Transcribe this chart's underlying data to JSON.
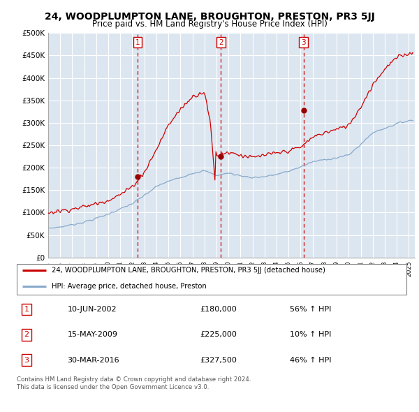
{
  "title": "24, WOODPLUMPTON LANE, BROUGHTON, PRESTON, PR3 5JJ",
  "subtitle": "Price paid vs. HM Land Registry's House Price Index (HPI)",
  "yticks": [
    0,
    50000,
    100000,
    150000,
    200000,
    250000,
    300000,
    350000,
    400000,
    450000,
    500000
  ],
  "ytick_labels": [
    "£0",
    "£50K",
    "£100K",
    "£150K",
    "£200K",
    "£250K",
    "£300K",
    "£350K",
    "£400K",
    "£450K",
    "£500K"
  ],
  "xlim_start": 1995.0,
  "xlim_end": 2025.5,
  "ylim_min": 0,
  "ylim_max": 500000,
  "background_color": "#dce6f0",
  "grid_color": "#ffffff",
  "sale_color": "#cc0000",
  "hpi_color": "#88aacc",
  "annotations": [
    {
      "num": 1,
      "date_x": 2002.44,
      "price": 180000,
      "label": "10-JUN-2002",
      "price_label": "£180,000",
      "hpi_label": "56% ↑ HPI"
    },
    {
      "num": 2,
      "date_x": 2009.37,
      "price": 225000,
      "label": "15-MAY-2009",
      "price_label": "£225,000",
      "hpi_label": "10% ↑ HPI"
    },
    {
      "num": 3,
      "date_x": 2016.24,
      "price": 327500,
      "label": "30-MAR-2016",
      "price_label": "£327,500",
      "hpi_label": "46% ↑ HPI"
    }
  ],
  "legend_entries": [
    {
      "label": "24, WOODPLUMPTON LANE, BROUGHTON, PRESTON, PR3 5JJ (detached house)",
      "color": "#cc0000"
    },
    {
      "label": "HPI: Average price, detached house, Preston",
      "color": "#88aacc"
    }
  ],
  "footer_text": "Contains HM Land Registry data © Crown copyright and database right 2024.\nThis data is licensed under the Open Government Licence v3.0.",
  "xtick_years": [
    1995,
    1996,
    1997,
    1998,
    1999,
    2000,
    2001,
    2002,
    2003,
    2004,
    2005,
    2006,
    2007,
    2008,
    2009,
    2010,
    2011,
    2012,
    2013,
    2014,
    2015,
    2016,
    2017,
    2018,
    2019,
    2020,
    2021,
    2022,
    2023,
    2024,
    2025
  ]
}
